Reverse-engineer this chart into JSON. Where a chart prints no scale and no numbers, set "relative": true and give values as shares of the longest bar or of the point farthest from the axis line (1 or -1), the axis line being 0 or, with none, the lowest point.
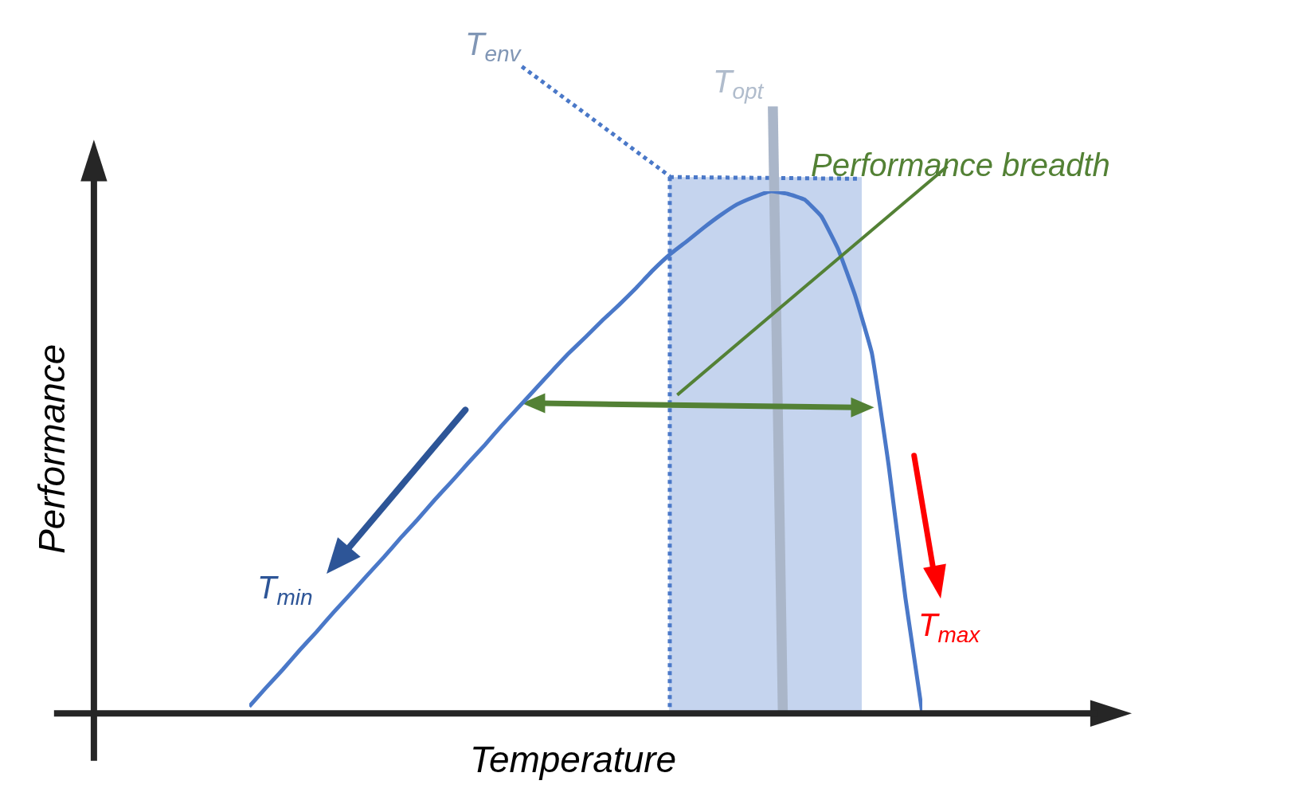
{
  "chart_data": {
    "type": "line",
    "relative": true,
    "xlabel": "Temperature",
    "ylabel": "Performance",
    "categories": [
      null,
      null,
      null,
      null,
      null,
      null,
      null,
      null,
      null,
      null,
      null,
      null,
      null,
      null,
      null,
      null,
      null,
      null,
      null,
      null,
      null,
      null,
      null,
      null,
      null,
      null,
      null,
      null,
      null,
      null,
      null,
      null,
      null,
      null,
      null,
      null,
      null,
      null,
      null,
      null,
      null
    ],
    "series": [
      {
        "color": "#4a78c8",
        "values": [
          0.013,
          0.049,
          0.084,
          0.121,
          0.156,
          0.193,
          0.228,
          0.264,
          0.299,
          0.336,
          0.371,
          0.408,
          0.443,
          0.479,
          0.514,
          0.551,
          0.586,
          0.621,
          0.656,
          0.69,
          0.721,
          0.753,
          0.783,
          0.815,
          0.849,
          0.879,
          0.904,
          0.93,
          0.954,
          0.975,
          0.989,
          1,
          0.995,
          0.984,
          0.952,
          0.889,
          0.801,
          0.69,
          0.475,
          0.22,
          0
        ]
      }
    ],
    "annotations": [
      "T$_{env}$",
      "T$_{opt}$",
      "Performance breadth",
      "T$_{min}$",
      "T$_{max}$"
    ],
    "marker": "none",
    "line_style": "solid"
  }
}
